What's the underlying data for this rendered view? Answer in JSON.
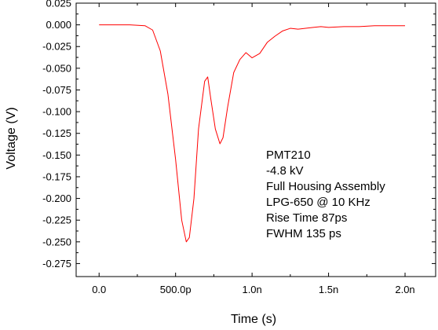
{
  "chart_data": {
    "type": "line",
    "title": "",
    "xlabel": "Time (s)",
    "ylabel": "Voltage (V)",
    "xlim": [
      -1.5e-10,
      2.2e-09
    ],
    "ylim": [
      -0.29,
      0.025
    ],
    "grid": false,
    "x_ticks": [
      {
        "value": 0,
        "label": "0.0"
      },
      {
        "value": 5e-10,
        "label": "500.0p"
      },
      {
        "value": 1e-09,
        "label": "1.0n"
      },
      {
        "value": 1.5e-09,
        "label": "1.5n"
      },
      {
        "value": 2e-09,
        "label": "2.0n"
      }
    ],
    "y_ticks": [
      {
        "value": 0.025,
        "label": "0.025"
      },
      {
        "value": 0.0,
        "label": "0.000"
      },
      {
        "value": -0.025,
        "label": "-0.025"
      },
      {
        "value": -0.05,
        "label": "-0.050"
      },
      {
        "value": -0.075,
        "label": "-0.075"
      },
      {
        "value": -0.1,
        "label": "-0.100"
      },
      {
        "value": -0.125,
        "label": "-0.125"
      },
      {
        "value": -0.15,
        "label": "-0.150"
      },
      {
        "value": -0.175,
        "label": "-0.175"
      },
      {
        "value": -0.2,
        "label": "-0.200"
      },
      {
        "value": -0.225,
        "label": "-0.225"
      },
      {
        "value": -0.25,
        "label": "-0.250"
      },
      {
        "value": -0.275,
        "label": "-0.275"
      }
    ],
    "series": [
      {
        "color": "#ff0000",
        "x": [
          0,
          2e-10,
          3e-10,
          3.5e-10,
          4e-10,
          4.5e-10,
          5e-10,
          5.4e-10,
          5.7e-10,
          5.9e-10,
          6.2e-10,
          6.5e-10,
          6.9e-10,
          7.1e-10,
          7.3e-10,
          7.6e-10,
          7.9e-10,
          8.1e-10,
          8.4e-10,
          8.8e-10,
          9.2e-10,
          9.6e-10,
          1e-09,
          1.05e-09,
          1.1e-09,
          1.15e-09,
          1.2e-09,
          1.25e-09,
          1.3e-09,
          1.35e-09,
          1.4e-09,
          1.45e-09,
          1.5e-09,
          1.6e-09,
          1.7e-09,
          1.8e-09,
          1.9e-09,
          2e-09
        ],
        "y": [
          0.0,
          0.0,
          -0.001,
          -0.006,
          -0.03,
          -0.08,
          -0.155,
          -0.225,
          -0.25,
          -0.245,
          -0.2,
          -0.12,
          -0.065,
          -0.06,
          -0.085,
          -0.12,
          -0.137,
          -0.13,
          -0.095,
          -0.055,
          -0.04,
          -0.032,
          -0.038,
          -0.033,
          -0.02,
          -0.013,
          -0.007,
          -0.004,
          -0.005,
          -0.004,
          -0.003,
          -0.002,
          -0.003,
          -0.002,
          -0.002,
          -0.001,
          -0.001,
          -0.001
        ]
      }
    ],
    "annotation_lines": [
      "PMT210",
      "-4.8 kV",
      "Full Housing Assembly",
      "LPG-650 @ 10 KHz",
      "Rise Time 87ps",
      "FWHM  135 ps"
    ]
  }
}
